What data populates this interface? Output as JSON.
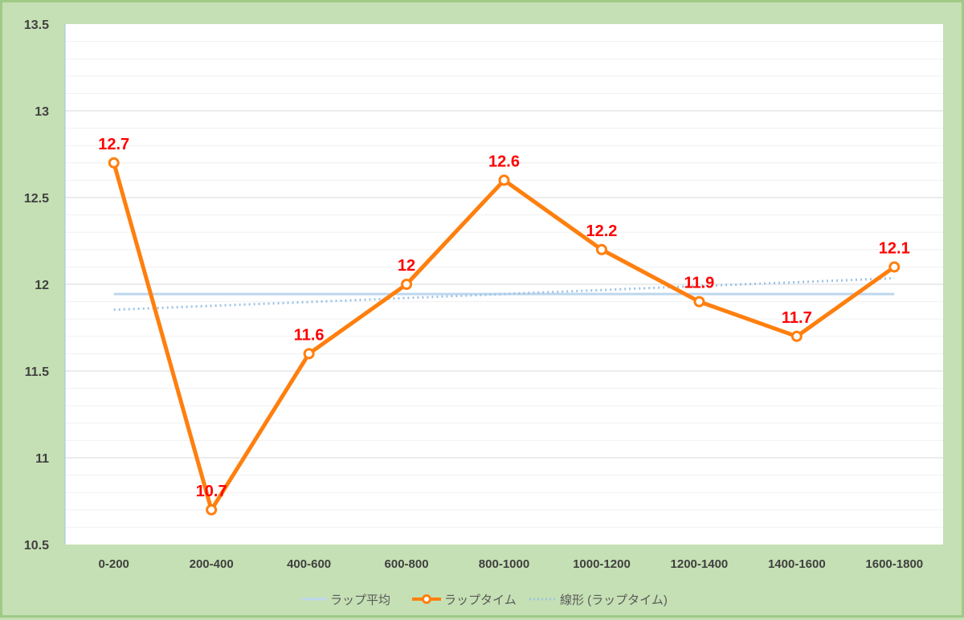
{
  "chart_data": {
    "type": "line",
    "categories": [
      "0-200",
      "200-400",
      "400-600",
      "600-800",
      "800-1000",
      "1000-1200",
      "1200-1400",
      "1400-1600",
      "1600-1800"
    ],
    "series": [
      {
        "name": "ラップ平均",
        "values": [
          11.944,
          11.944,
          11.944,
          11.944,
          11.944,
          11.944,
          11.944,
          11.944,
          11.944
        ],
        "color": "#bdd7ee"
      },
      {
        "name": "ラップタイム",
        "values": [
          12.7,
          10.7,
          11.6,
          12.0,
          12.6,
          12.2,
          11.9,
          11.7,
          12.1
        ],
        "color": "#ff7f0e"
      },
      {
        "name": "線形 (ラップタイム)",
        "values": [
          11.853,
          11.876,
          11.898,
          11.921,
          11.944,
          11.967,
          11.99,
          12.012,
          12.035
        ],
        "color": "#9dc3e6"
      }
    ],
    "data_labels": [
      "12.7",
      "10.7",
      "11.6",
      "12",
      "12.6",
      "12.2",
      "11.9",
      "11.7",
      "12.1"
    ],
    "yticks": [
      "10.5",
      "11",
      "11.5",
      "12",
      "12.5",
      "13",
      "13.5"
    ],
    "ylim": [
      10.5,
      13.5
    ],
    "grid": true,
    "legend": "bottom",
    "title": "",
    "xlabel": "",
    "ylabel": ""
  }
}
